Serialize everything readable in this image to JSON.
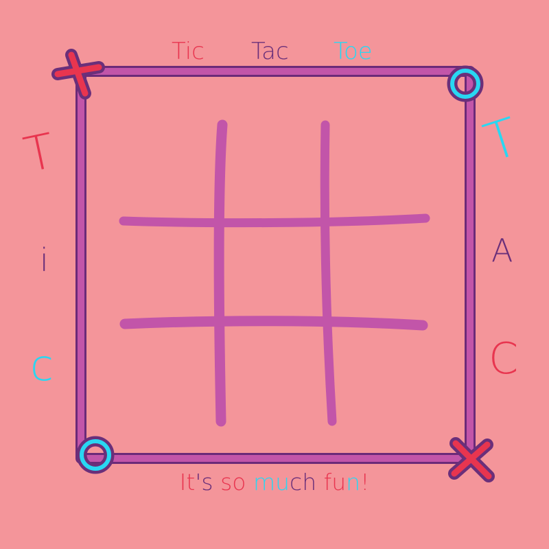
{
  "colors": {
    "background": "#f4959a",
    "board": "#c255a9",
    "board_outline": "#6b2a78",
    "red": "#e8354f",
    "cyan": "#29d7f2",
    "purple": "#6a2f7a"
  },
  "title": {
    "words": [
      {
        "text": "Tic",
        "color": "#e8354f"
      },
      {
        "text": "Tac",
        "color": "#6a2f7a"
      },
      {
        "text": "Toe",
        "color": "#29d7f2"
      }
    ]
  },
  "left_letters": [
    {
      "text": "T",
      "color": "#e8354f"
    },
    {
      "text": "i",
      "color": "#6a2f7a"
    },
    {
      "text": "c",
      "color": "#29d7f2"
    }
  ],
  "right_letters": [
    {
      "text": "T",
      "color": "#29d7f2"
    },
    {
      "text": "A",
      "color": "#6a2f7a"
    },
    {
      "text": "C",
      "color": "#e8354f"
    }
  ],
  "tagline": {
    "segments": [
      {
        "text": "It",
        "color": "#e8354f"
      },
      {
        "text": "'s ",
        "color": "#6a2f7a"
      },
      {
        "text": "so ",
        "color": "#e8354f"
      },
      {
        "text": "mu",
        "color": "#29d7f2"
      },
      {
        "text": "ch ",
        "color": "#6a2f7a"
      },
      {
        "text": "fu",
        "color": "#e8354f"
      },
      {
        "text": "n",
        "color": "#29d7f2"
      },
      {
        "text": "!",
        "color": "#e8354f"
      }
    ]
  },
  "corner_marks": [
    {
      "corner": "top-left",
      "mark": "X"
    },
    {
      "corner": "top-right",
      "mark": "O"
    },
    {
      "corner": "bottom-left",
      "mark": "O"
    },
    {
      "corner": "bottom-right",
      "mark": "X"
    }
  ],
  "board": {
    "cells": [
      "",
      "",
      "",
      "",
      "",
      "",
      "",
      "",
      ""
    ]
  }
}
